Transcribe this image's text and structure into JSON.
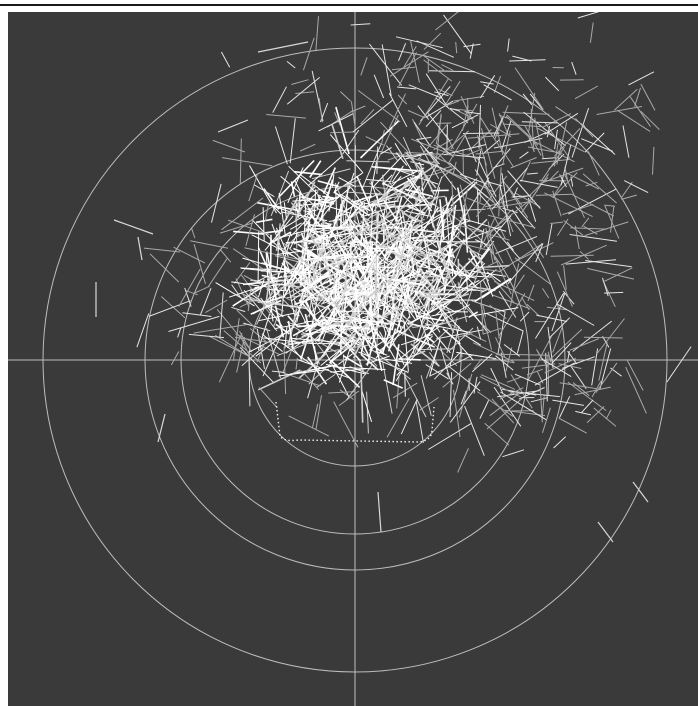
{
  "window": {
    "title": ""
  },
  "viewport": {
    "view_label": "",
    "background_color": "#3a3a3a",
    "guide_color": "#bdbdbd",
    "selection_color": "#f2f2f2",
    "scene": {
      "guide_circle_count": 4,
      "crosshair": true,
      "bush_bounds_marker": true,
      "branch_count_approx": 1400
    }
  }
}
